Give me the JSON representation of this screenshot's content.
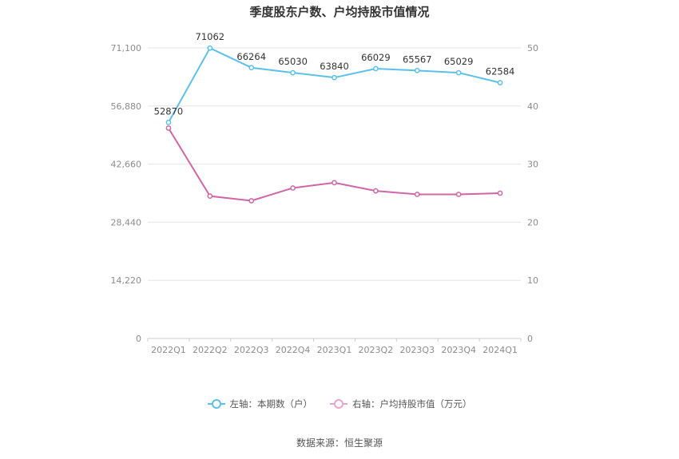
{
  "chart_data": {
    "type": "line",
    "title": "季度股东户数、户均持股市值情况",
    "categories": [
      "2022Q1",
      "2022Q2",
      "2022Q3",
      "2022Q4",
      "2023Q1",
      "2023Q2",
      "2023Q3",
      "2023Q4",
      "2024Q1"
    ],
    "y_left_ticks": [
      "0",
      "14,220",
      "28,440",
      "42,660",
      "56,880",
      "71,100"
    ],
    "y_left_range": [
      0,
      71100
    ],
    "y_right_ticks": [
      "0",
      "10",
      "20",
      "30",
      "40",
      "50"
    ],
    "y_right_range": [
      0,
      50
    ],
    "grid": true,
    "legend_position": "bottom",
    "series": [
      {
        "name": "左轴：本期数（户）",
        "axis": "left",
        "color": "#5bc0eb",
        "values": [
          52870,
          71062,
          66264,
          65030,
          63840,
          66029,
          65567,
          65029,
          62584
        ],
        "labels": [
          "52870",
          "71062",
          "66264",
          "65030",
          "63840",
          "66029",
          "65567",
          "65029",
          "62584"
        ]
      },
      {
        "name": "右轴：户均持股市值（万元）",
        "axis": "right",
        "color": "#d264a8",
        "values": [
          36.2,
          24.5,
          23.7,
          25.9,
          26.8,
          25.4,
          24.8,
          24.8,
          25.0
        ]
      }
    ]
  },
  "source": "数据来源：恒生聚源"
}
